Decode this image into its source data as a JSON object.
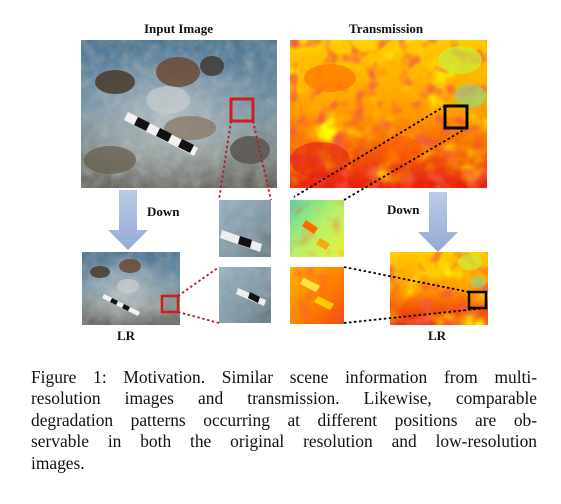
{
  "figure": {
    "labels": {
      "input_image": "Input Image",
      "transmission": "Transmission",
      "down_left": "Down",
      "down_right": "Down",
      "lr_left": "LR",
      "lr_right": "LR"
    },
    "colors": {
      "roi_box_input": "#cc1f1f",
      "roi_box_transmission": "#000000",
      "down_arrow": "#a9bce0",
      "connector_red": "#b4182a",
      "connector_black": "#000000"
    },
    "icons": [
      "down-arrow-icon",
      "down-arrow-icon"
    ]
  },
  "caption": {
    "lines": [
      "Figure 1: Motivation. Similar scene information from multi-",
      "resolution images and transmission. Likewise, comparable",
      "degradation patterns occurring at different positions are ob-",
      "servable in both the original resolution and low-resolution",
      "images."
    ]
  }
}
